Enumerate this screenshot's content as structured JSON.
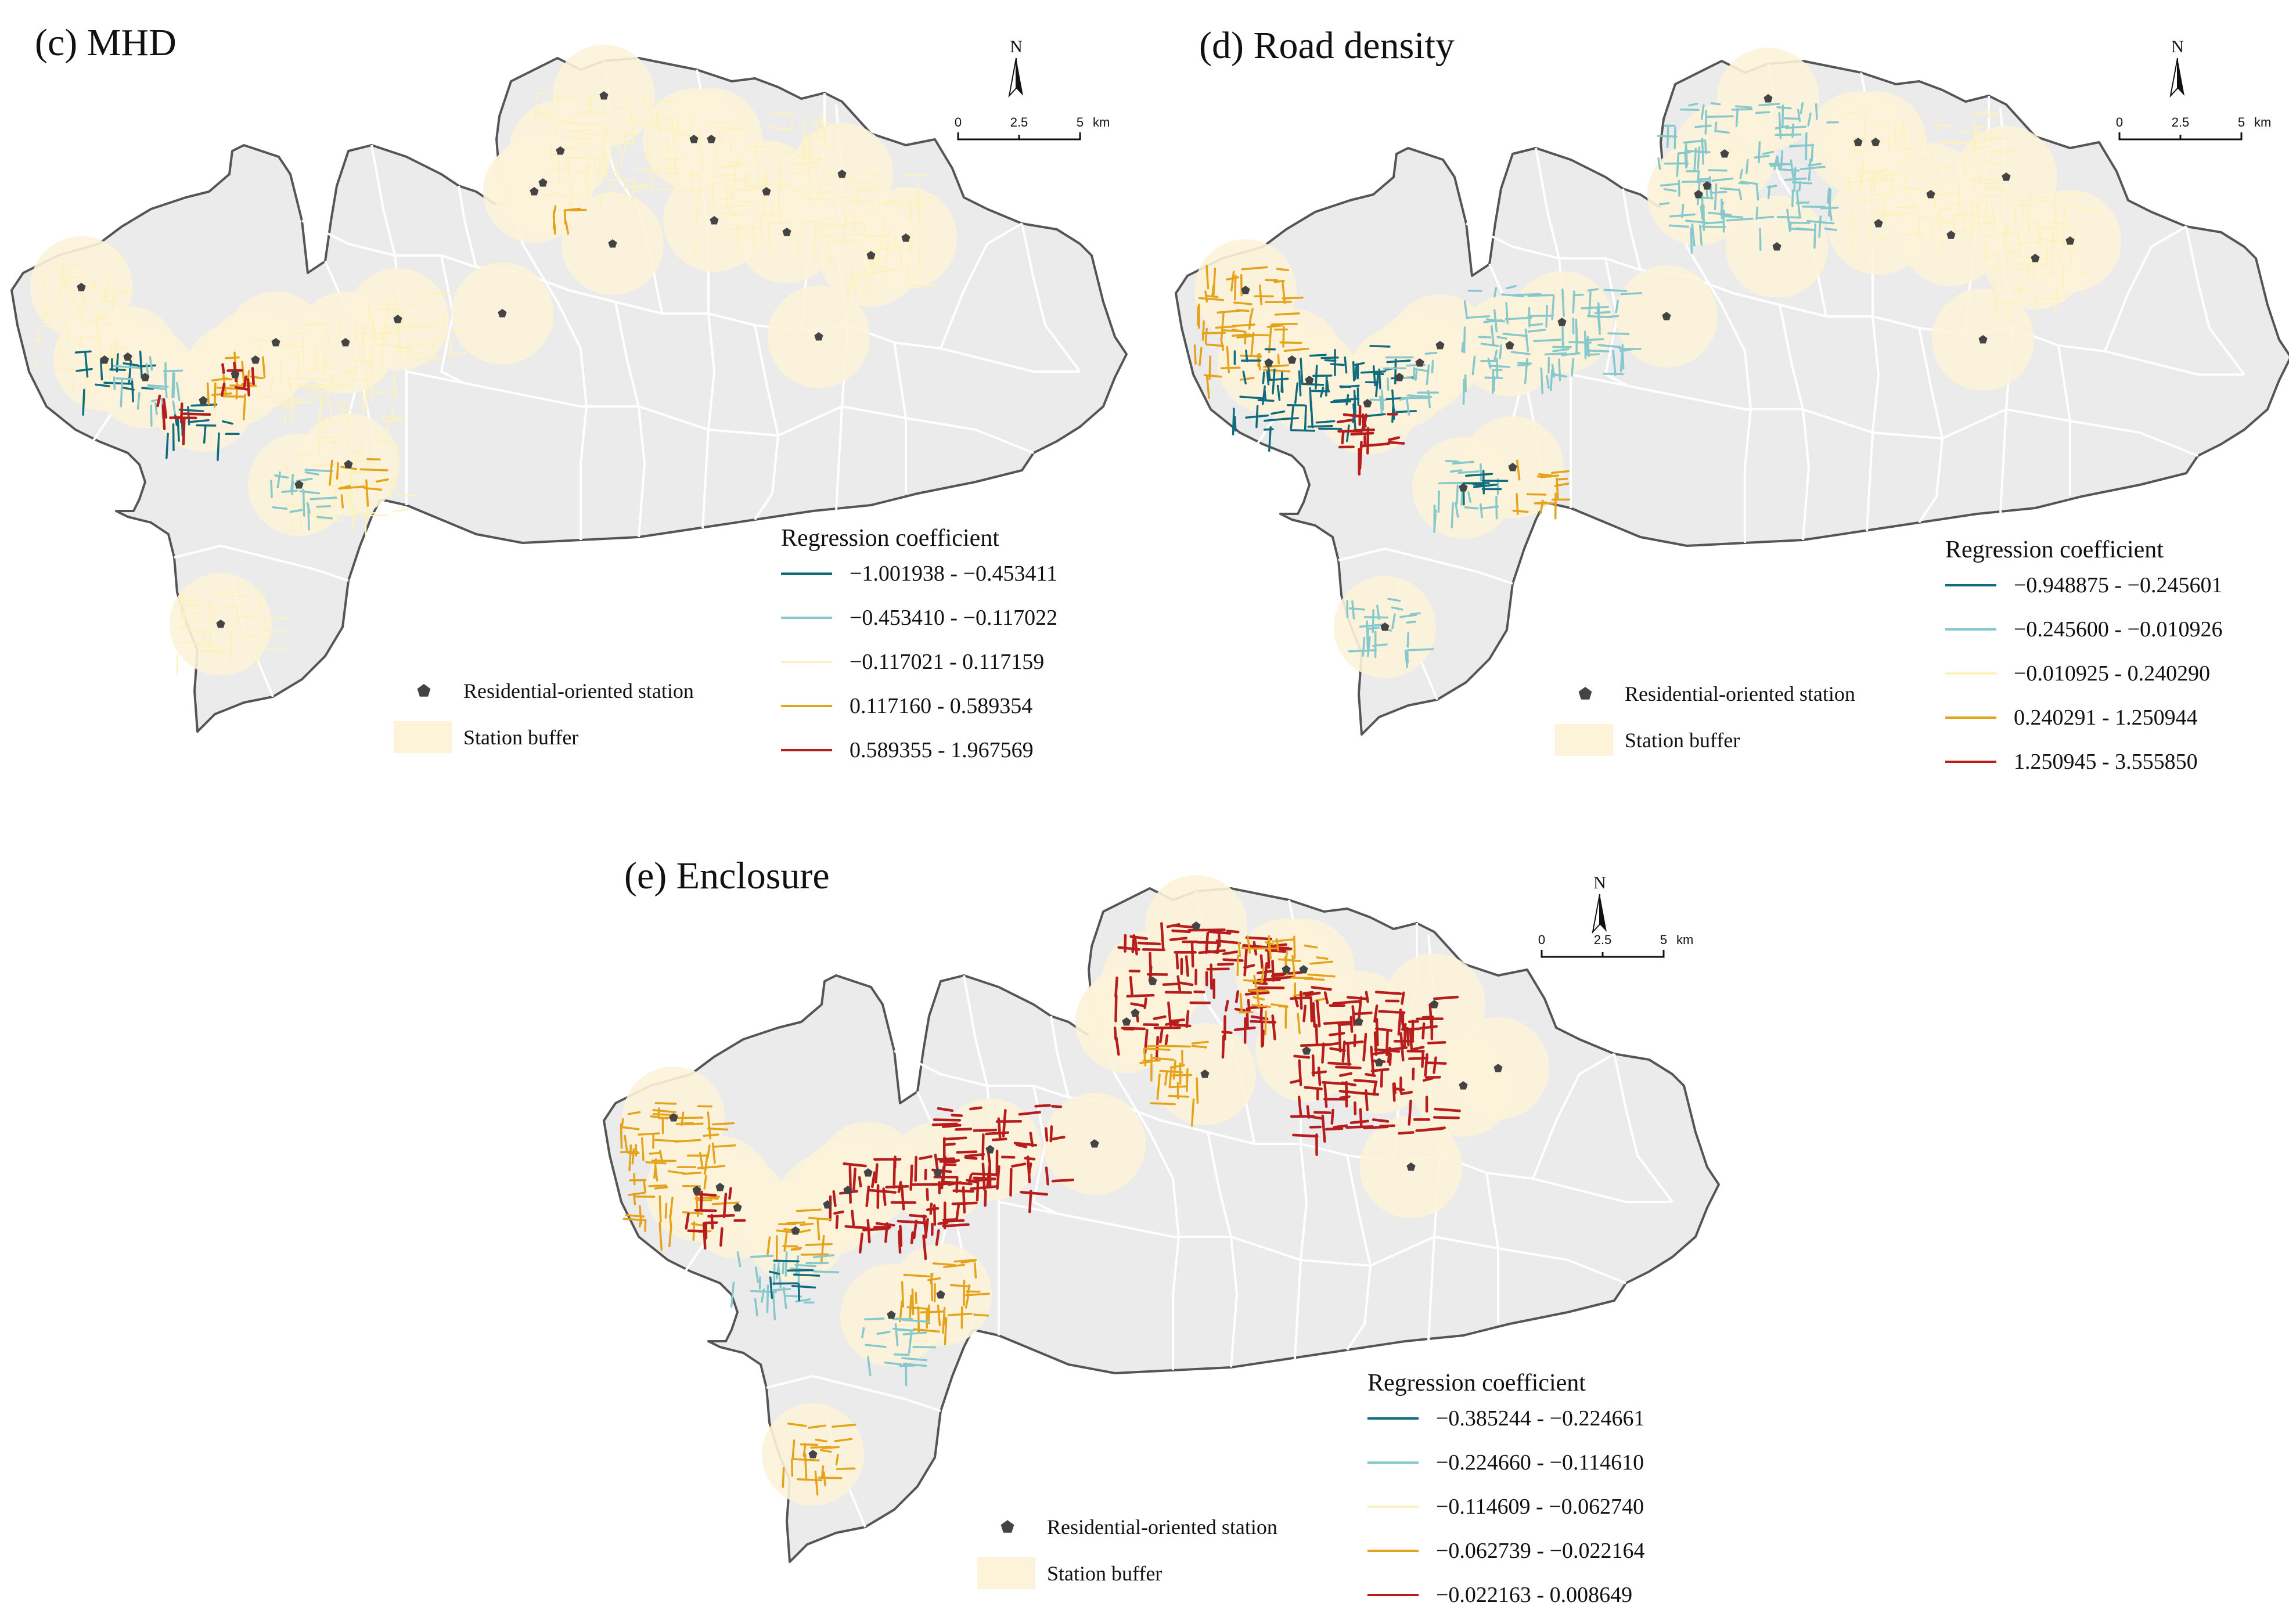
{
  "panels": [
    {
      "title": "(c) MHD",
      "north": "N",
      "scale": {
        "ticks": [
          "0",
          "2.5",
          "5"
        ],
        "unit": "km"
      },
      "legend": {
        "title": "Regression coefficient",
        "classes": [
          {
            "label": "−1.001938 - −0.453411",
            "color": "#0f6b7d"
          },
          {
            "label": "−0.453410 - −0.117022",
            "color": "#86c8cc"
          },
          {
            "label": "−0.117021 - 0.117159",
            "color": "#fbf2bf"
          },
          {
            "label": "0.117160 - 0.589354",
            "color": "#e5a21b"
          },
          {
            "label": "0.589355 - 1.967569",
            "color": "#b81d1d"
          }
        ],
        "station_label": "Residential-oriented station",
        "buffer_label": "Station buffer"
      }
    },
    {
      "title": "(d) Road density",
      "north": "N",
      "scale": {
        "ticks": [
          "0",
          "2.5",
          "5"
        ],
        "unit": "km"
      },
      "legend": {
        "title": "Regression coefficient",
        "classes": [
          {
            "label": "−0.948875 - −0.245601",
            "color": "#0f6b7d"
          },
          {
            "label": "−0.245600 - −0.010926",
            "color": "#86c8cc"
          },
          {
            "label": "−0.010925 - 0.240290",
            "color": "#fbf2bf"
          },
          {
            "label": "0.240291 - 1.250944",
            "color": "#e5a21b"
          },
          {
            "label": "1.250945 - 3.555850",
            "color": "#b81d1d"
          }
        ],
        "station_label": "Residential-oriented station",
        "buffer_label": "Station buffer"
      }
    },
    {
      "title": "(e) Enclosure",
      "north": "N",
      "scale": {
        "ticks": [
          "0",
          "2.5",
          "5"
        ],
        "unit": "km"
      },
      "legend": {
        "title": "Regression coefficient",
        "classes": [
          {
            "label": "−0.385244 - −0.224661",
            "color": "#0f6b7d"
          },
          {
            "label": "−0.224660 - −0.114610",
            "color": "#86c8cc"
          },
          {
            "label": "−0.114609 - −0.062740",
            "color": "#fbf2bf"
          },
          {
            "label": "−0.062739 - −0.022164",
            "color": "#e5a21b"
          },
          {
            "label": "−0.022163 - 0.008649",
            "color": "#b81d1d"
          }
        ],
        "station_label": "Residential-oriented station",
        "buffer_label": "Station buffer"
      }
    }
  ],
  "map_colors": {
    "land": "#ebebeb",
    "boundary": "#555555",
    "district": "#ffffff",
    "buffer": "#fdf3d9",
    "station": "#444444"
  }
}
